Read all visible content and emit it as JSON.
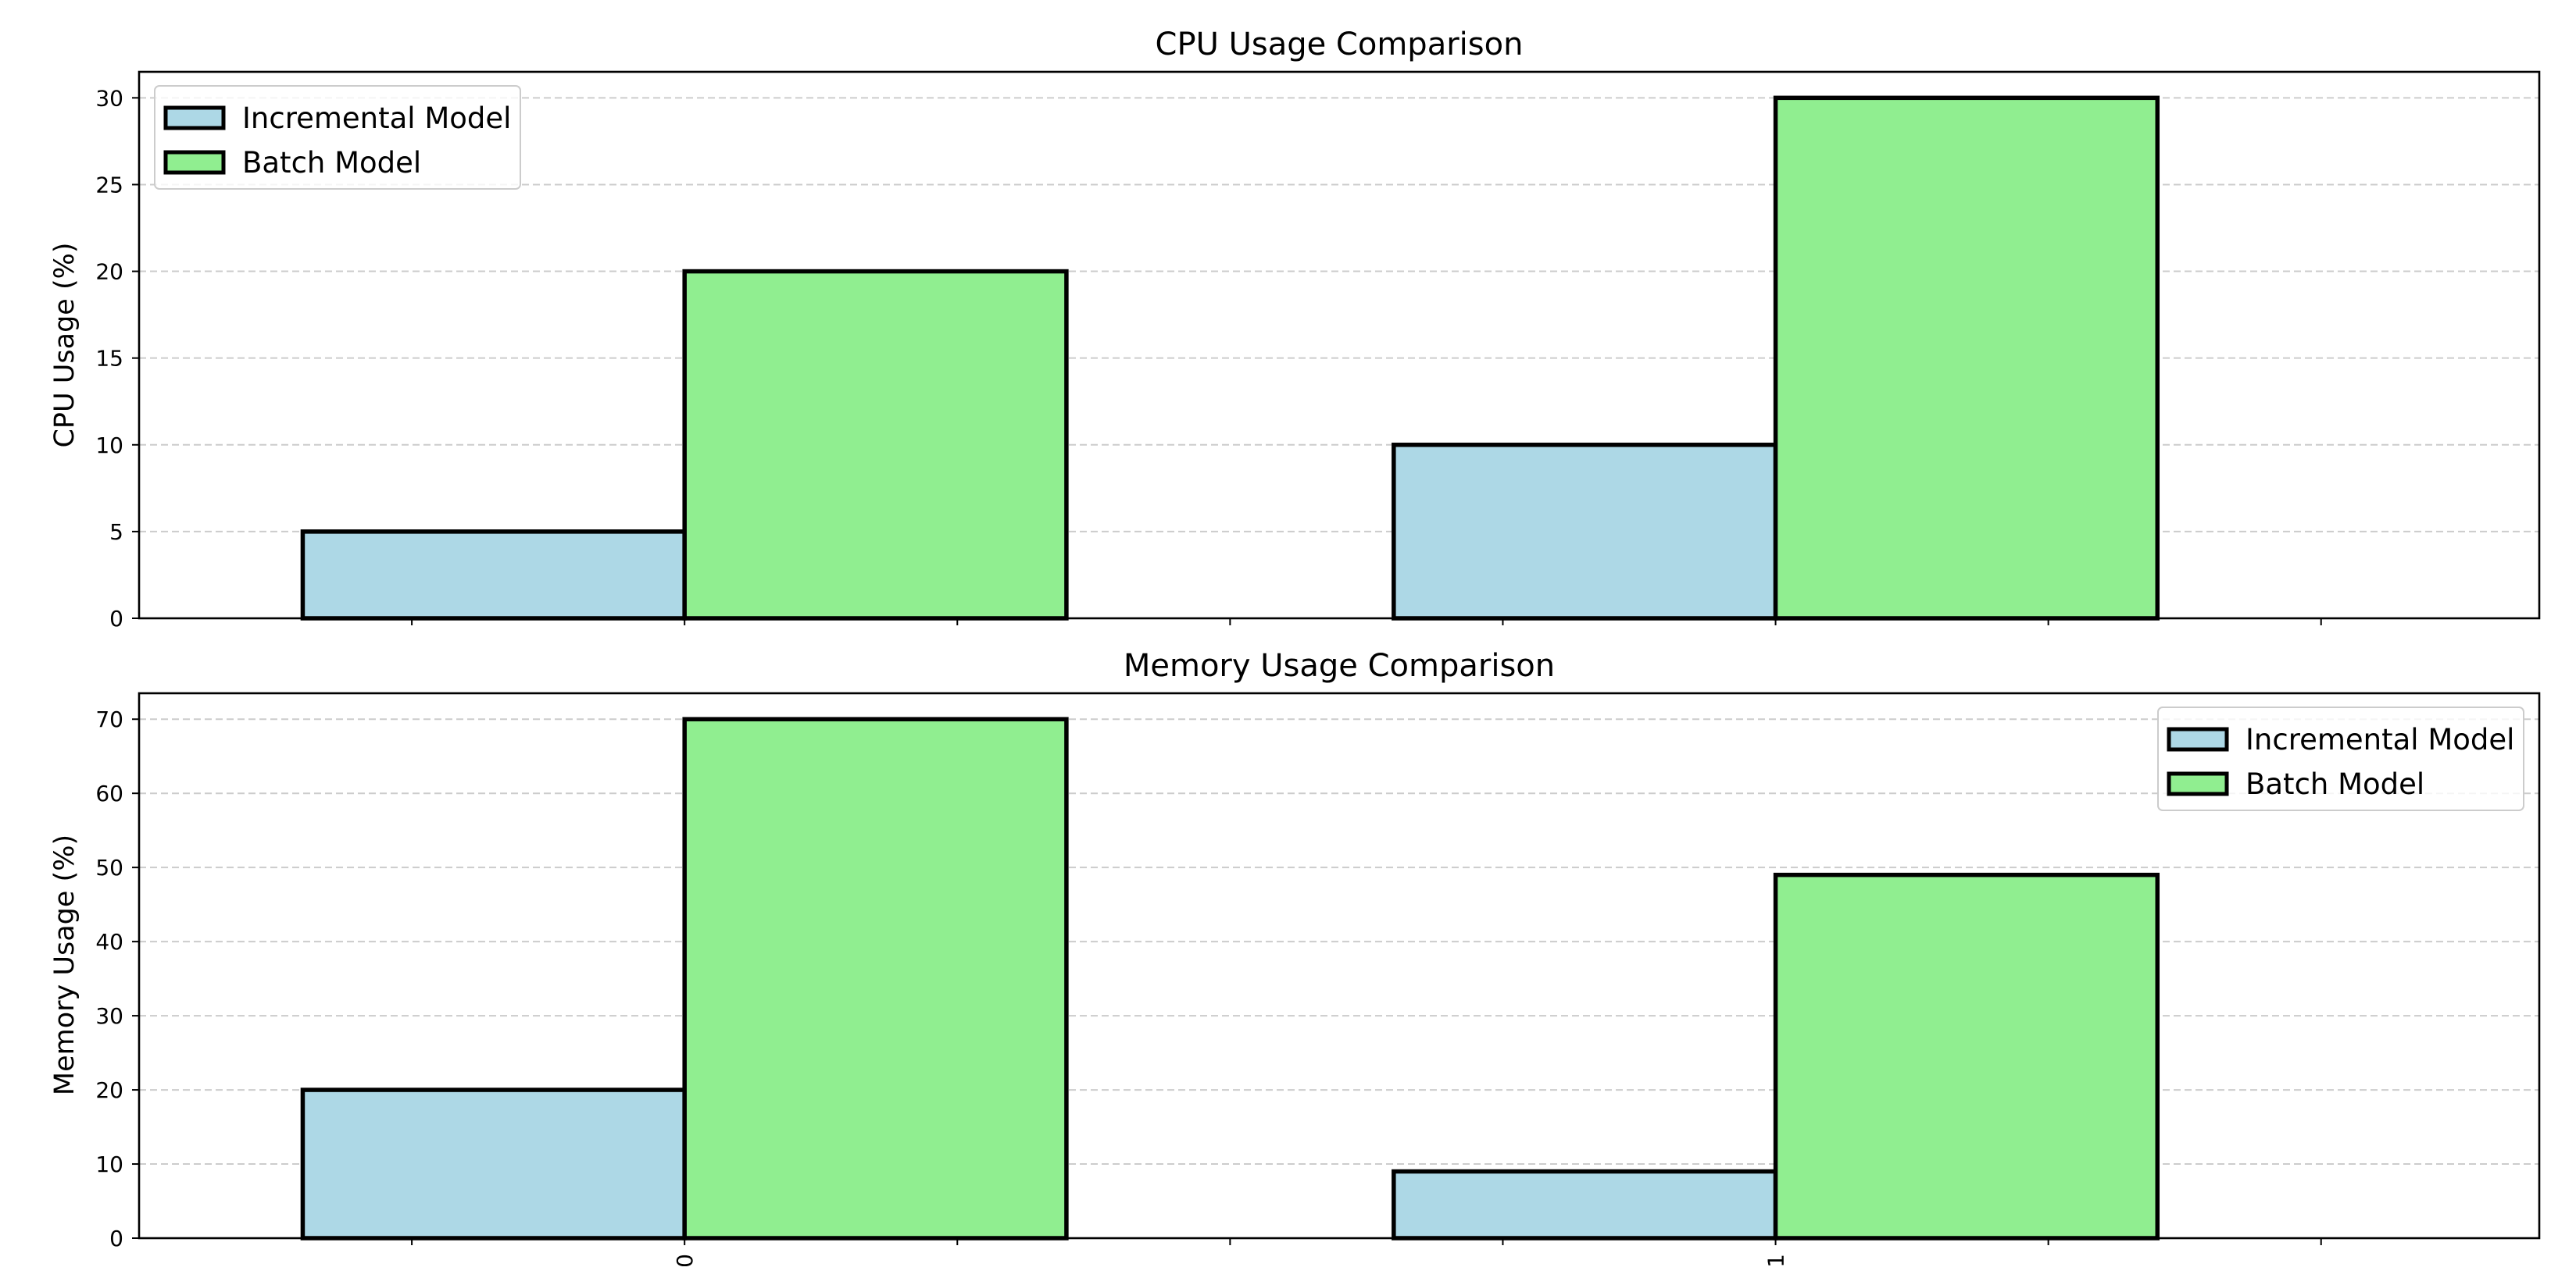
{
  "chart_data": [
    {
      "type": "bar",
      "title": "CPU Usage Comparison",
      "xlabel": "",
      "ylabel": "CPU Usage (%)",
      "categories": [
        "0",
        "1"
      ],
      "show_x_tick_labels": false,
      "ylim": [
        0,
        31.5
      ],
      "yticks": [
        0,
        5,
        10,
        15,
        20,
        25,
        30
      ],
      "grid": "y-dashed",
      "legend": "upper left",
      "series": [
        {
          "name": "Incremental Model",
          "values": [
            5,
            10
          ],
          "color": "#add8e6"
        },
        {
          "name": "Batch Model",
          "values": [
            20,
            30
          ],
          "color": "#90ee90"
        }
      ]
    },
    {
      "type": "bar",
      "title": "Memory Usage Comparison",
      "xlabel": "",
      "ylabel": "Memory Usage (%)",
      "categories": [
        "0",
        "1"
      ],
      "show_x_tick_labels": true,
      "x_tick_rotation": 90,
      "ylim": [
        0,
        73.5
      ],
      "yticks": [
        0,
        10,
        20,
        30,
        40,
        50,
        60,
        70
      ],
      "grid": "y-dashed",
      "legend": "upper right",
      "series": [
        {
          "name": "Incremental Model",
          "values": [
            20,
            9
          ],
          "color": "#add8e6"
        },
        {
          "name": "Batch Model",
          "values": [
            70,
            49
          ],
          "color": "#90ee90"
        }
      ]
    }
  ]
}
